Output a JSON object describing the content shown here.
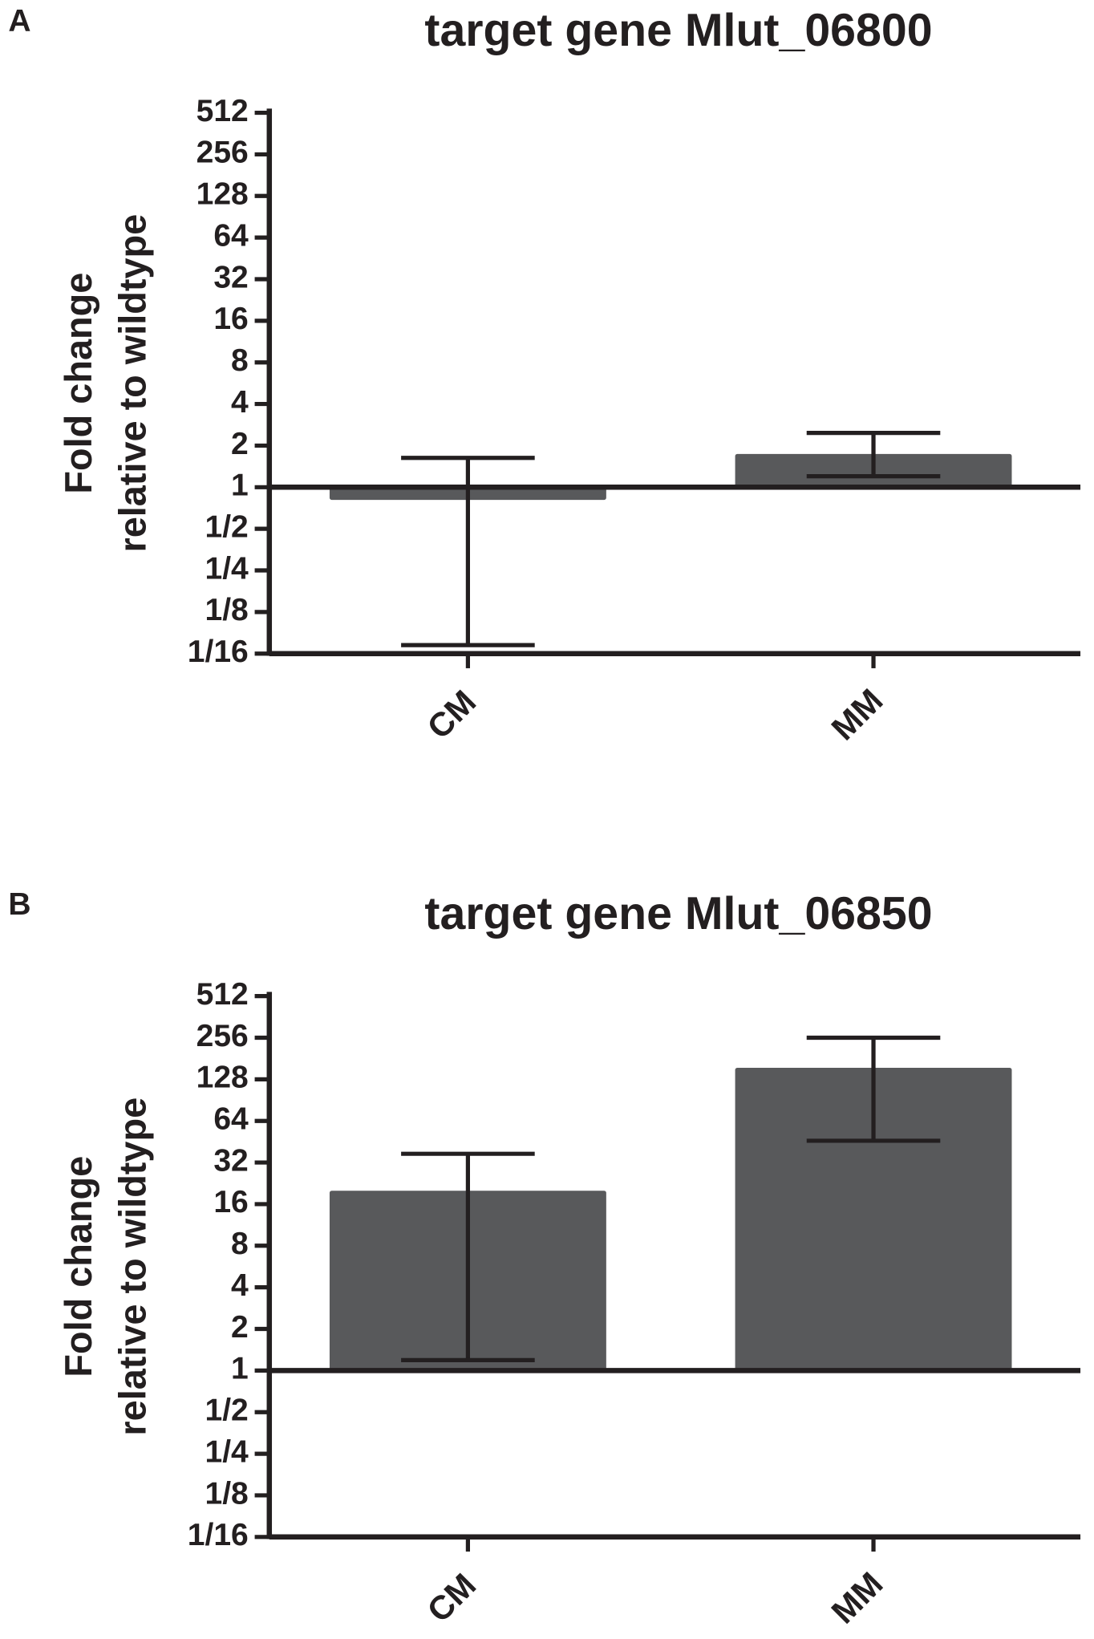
{
  "chart_data": [
    {
      "type": "bar",
      "panel": "A",
      "title": "target gene Mlut_06800",
      "y_label": [
        "Fold change",
        "relative to wildtype"
      ],
      "categories": [
        "CM",
        "MM"
      ],
      "values": [
        0.81,
        1.74
      ],
      "error_lower": [
        0.072,
        1.2
      ],
      "error_upper": [
        1.63,
        2.47
      ],
      "color": "#58595b",
      "log_scale": true,
      "ylim": [
        0.0625,
        512
      ],
      "yticks": [
        {
          "value": 0.0625,
          "label": "1/16"
        },
        {
          "value": 0.125,
          "label": "1/8"
        },
        {
          "value": 0.25,
          "label": "1/4"
        },
        {
          "value": 0.5,
          "label": "1/2"
        },
        1,
        2,
        4,
        8,
        16,
        32,
        64,
        128,
        256,
        512
      ]
    },
    {
      "type": "bar",
      "panel": "B",
      "title": "target gene Mlut_06850",
      "y_label": [
        "Fold change",
        "relative to wildtype"
      ],
      "categories": [
        "CM",
        "MM"
      ],
      "values": [
        20,
        155
      ],
      "error_lower": [
        1.19,
        46
      ],
      "error_upper": [
        37,
        256
      ],
      "color": "#58595b",
      "log_scale": true,
      "ylim": [
        0.0625,
        512
      ],
      "yticks": [
        {
          "value": 0.0625,
          "label": "1/16"
        },
        {
          "value": 0.125,
          "label": "1/8"
        },
        {
          "value": 0.25,
          "label": "1/4"
        },
        {
          "value": 0.5,
          "label": "1/2"
        },
        1,
        2,
        4,
        8,
        16,
        32,
        64,
        128,
        256,
        512
      ]
    }
  ]
}
